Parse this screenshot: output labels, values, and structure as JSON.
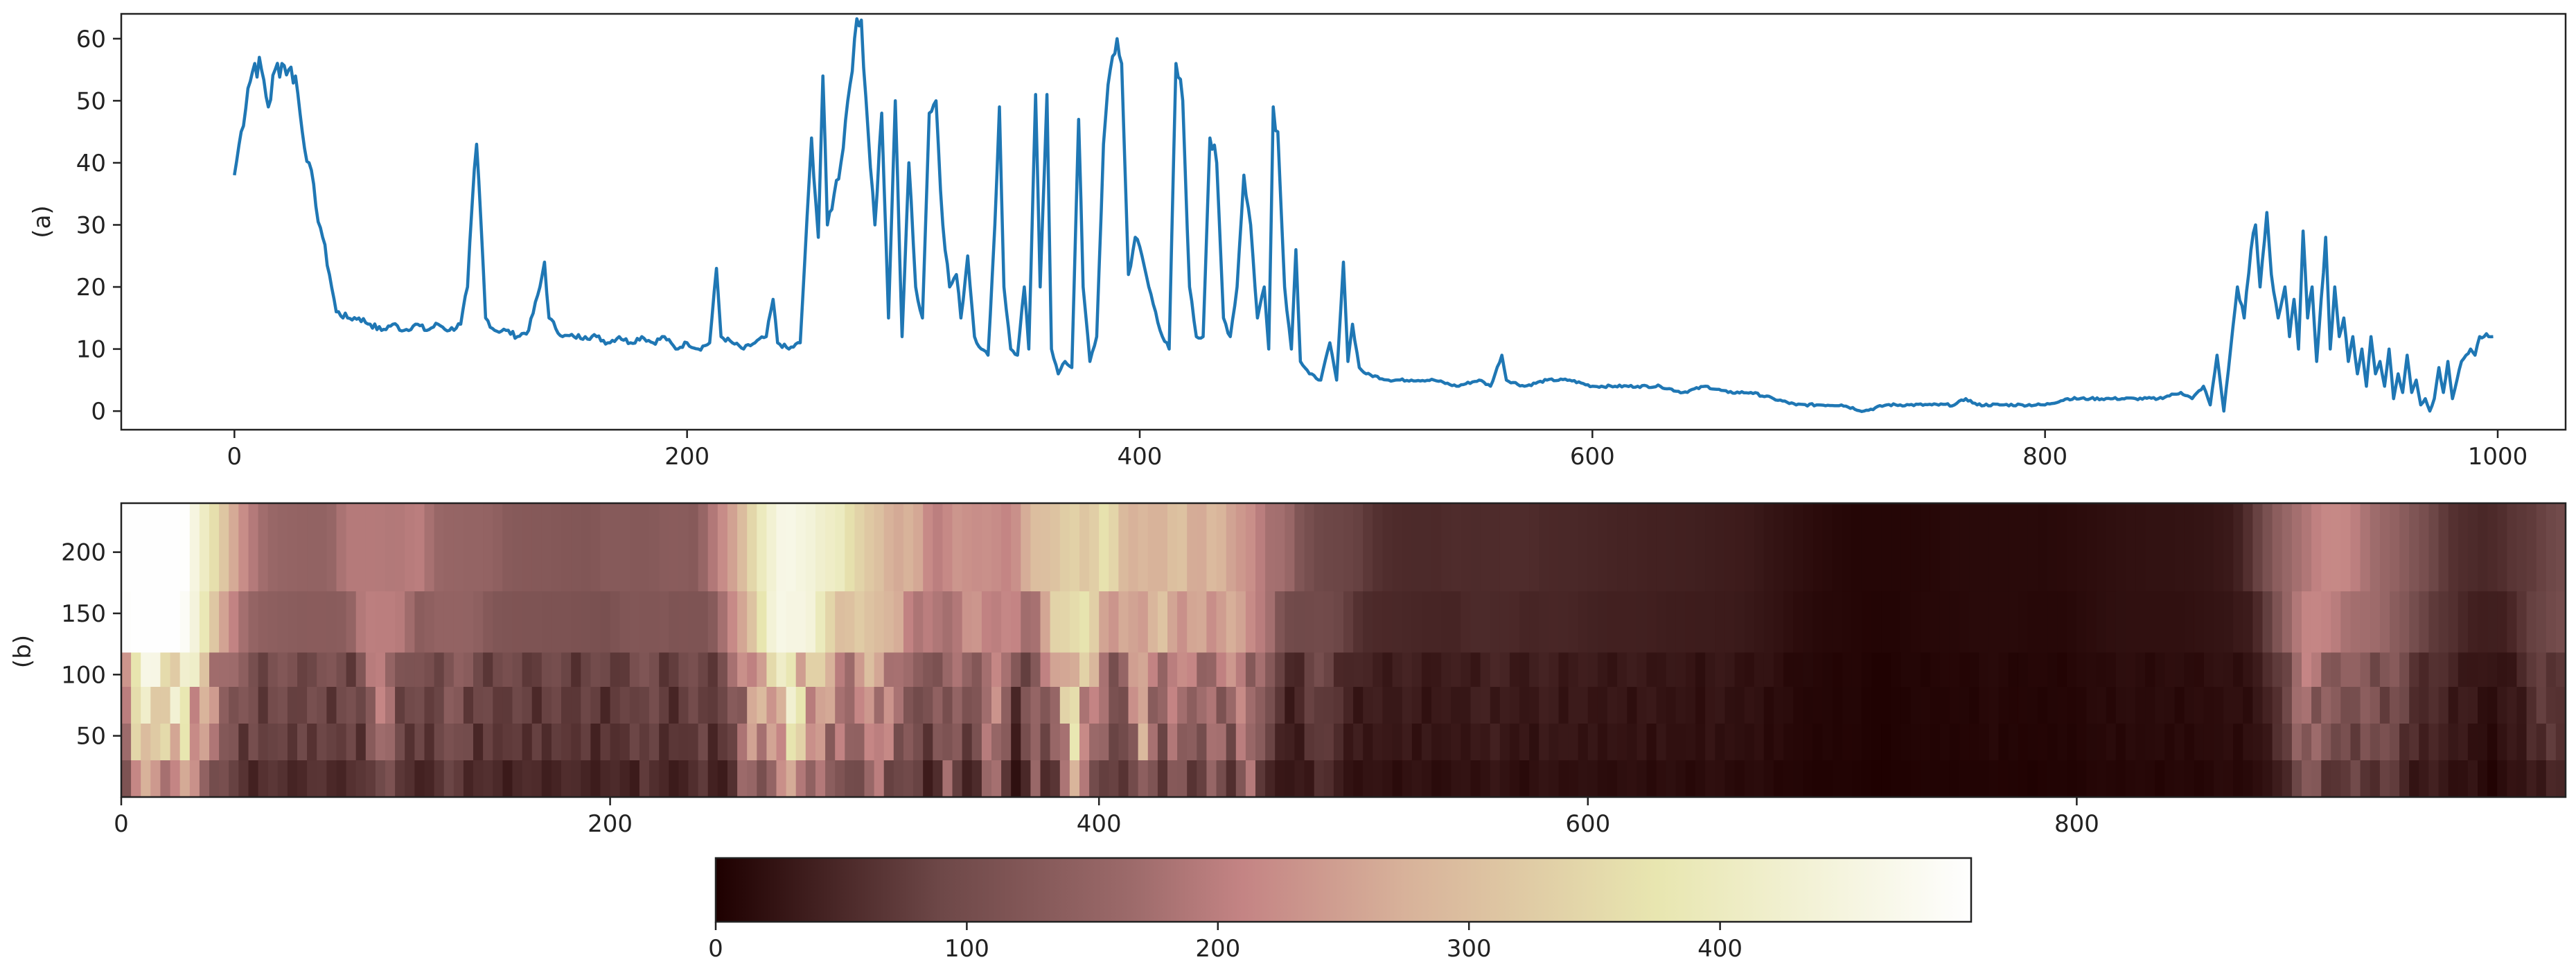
{
  "chart_data": [
    {
      "type": "line",
      "ylabel": "(a)",
      "xlim": [
        -50,
        1030
      ],
      "ylim": [
        -3,
        64
      ],
      "xticks": [
        0,
        200,
        400,
        600,
        800,
        1000
      ],
      "yticks": [
        0,
        10,
        20,
        30,
        40,
        50,
        60
      ],
      "series_color": "#1f77b4",
      "points": [
        [
          0,
          38
        ],
        [
          3,
          45
        ],
        [
          6,
          52
        ],
        [
          9,
          56
        ],
        [
          12,
          55
        ],
        [
          15,
          49
        ],
        [
          18,
          55
        ],
        [
          21,
          56
        ],
        [
          24,
          55
        ],
        [
          27,
          54
        ],
        [
          30,
          45
        ],
        [
          33,
          40
        ],
        [
          36,
          33
        ],
        [
          39,
          28
        ],
        [
          42,
          22
        ],
        [
          45,
          16
        ],
        [
          50,
          15
        ],
        [
          55,
          15
        ],
        [
          60,
          14
        ],
        [
          65,
          13
        ],
        [
          70,
          14
        ],
        [
          75,
          13
        ],
        [
          80,
          14
        ],
        [
          85,
          13
        ],
        [
          90,
          14
        ],
        [
          95,
          13
        ],
        [
          100,
          14
        ],
        [
          103,
          20
        ],
        [
          105,
          33
        ],
        [
          107,
          43
        ],
        [
          109,
          30
        ],
        [
          111,
          15
        ],
        [
          115,
          13
        ],
        [
          120,
          13
        ],
        [
          125,
          12
        ],
        [
          130,
          13
        ],
        [
          135,
          20
        ],
        [
          137,
          24
        ],
        [
          139,
          15
        ],
        [
          145,
          12
        ],
        [
          150,
          12
        ],
        [
          155,
          12
        ],
        [
          160,
          12
        ],
        [
          165,
          11
        ],
        [
          170,
          12
        ],
        [
          175,
          11
        ],
        [
          180,
          12
        ],
        [
          185,
          11
        ],
        [
          190,
          12
        ],
        [
          195,
          10
        ],
        [
          200,
          11
        ],
        [
          205,
          10
        ],
        [
          210,
          11
        ],
        [
          213,
          23
        ],
        [
          215,
          12
        ],
        [
          220,
          11
        ],
        [
          225,
          10
        ],
        [
          230,
          11
        ],
        [
          235,
          12
        ],
        [
          238,
          18
        ],
        [
          240,
          11
        ],
        [
          245,
          10
        ],
        [
          250,
          11
        ],
        [
          255,
          44
        ],
        [
          258,
          28
        ],
        [
          260,
          54
        ],
        [
          262,
          30
        ],
        [
          265,
          35
        ],
        [
          268,
          40
        ],
        [
          271,
          50
        ],
        [
          274,
          60
        ],
        [
          277,
          63
        ],
        [
          280,
          45
        ],
        [
          283,
          30
        ],
        [
          286,
          48
        ],
        [
          289,
          15
        ],
        [
          292,
          50
        ],
        [
          295,
          12
        ],
        [
          298,
          40
        ],
        [
          301,
          20
        ],
        [
          304,
          15
        ],
        [
          307,
          48
        ],
        [
          310,
          50
        ],
        [
          313,
          30
        ],
        [
          316,
          20
        ],
        [
          319,
          22
        ],
        [
          321,
          15
        ],
        [
          324,
          25
        ],
        [
          327,
          12
        ],
        [
          330,
          10
        ],
        [
          333,
          9
        ],
        [
          336,
          30
        ],
        [
          338,
          49
        ],
        [
          340,
          20
        ],
        [
          343,
          10
        ],
        [
          346,
          9
        ],
        [
          349,
          20
        ],
        [
          351,
          10
        ],
        [
          354,
          51
        ],
        [
          356,
          20
        ],
        [
          359,
          51
        ],
        [
          361,
          10
        ],
        [
          364,
          6
        ],
        [
          367,
          8
        ],
        [
          370,
          7
        ],
        [
          373,
          47
        ],
        [
          375,
          20
        ],
        [
          378,
          8
        ],
        [
          381,
          12
        ],
        [
          384,
          43
        ],
        [
          387,
          55
        ],
        [
          390,
          60
        ],
        [
          392,
          56
        ],
        [
          395,
          22
        ],
        [
          398,
          28
        ],
        [
          401,
          25
        ],
        [
          404,
          20
        ],
        [
          407,
          16
        ],
        [
          410,
          12
        ],
        [
          413,
          10
        ],
        [
          416,
          56
        ],
        [
          419,
          50
        ],
        [
          422,
          20
        ],
        [
          425,
          12
        ],
        [
          428,
          12
        ],
        [
          431,
          44
        ],
        [
          434,
          40
        ],
        [
          437,
          15
        ],
        [
          440,
          12
        ],
        [
          443,
          20
        ],
        [
          446,
          38
        ],
        [
          449,
          30
        ],
        [
          452,
          15
        ],
        [
          455,
          20
        ],
        [
          457,
          10
        ],
        [
          459,
          49
        ],
        [
          461,
          45
        ],
        [
          464,
          20
        ],
        [
          467,
          10
        ],
        [
          469,
          26
        ],
        [
          471,
          8
        ],
        [
          475,
          6
        ],
        [
          480,
          5
        ],
        [
          484,
          11
        ],
        [
          487,
          5
        ],
        [
          490,
          24
        ],
        [
          492,
          8
        ],
        [
          494,
          14
        ],
        [
          497,
          7
        ],
        [
          500,
          6
        ],
        [
          510,
          5
        ],
        [
          520,
          5
        ],
        [
          530,
          5
        ],
        [
          540,
          4
        ],
        [
          550,
          5
        ],
        [
          555,
          4
        ],
        [
          560,
          9
        ],
        [
          562,
          5
        ],
        [
          570,
          4
        ],
        [
          580,
          5
        ],
        [
          590,
          5
        ],
        [
          600,
          4
        ],
        [
          610,
          4
        ],
        [
          620,
          4
        ],
        [
          630,
          4
        ],
        [
          640,
          3
        ],
        [
          650,
          4
        ],
        [
          660,
          3
        ],
        [
          670,
          3
        ],
        [
          680,
          2
        ],
        [
          690,
          1
        ],
        [
          700,
          1
        ],
        [
          710,
          1
        ],
        [
          720,
          0
        ],
        [
          730,
          1
        ],
        [
          740,
          1
        ],
        [
          750,
          1
        ],
        [
          760,
          1
        ],
        [
          765,
          2
        ],
        [
          770,
          1
        ],
        [
          780,
          1
        ],
        [
          790,
          1
        ],
        [
          800,
          1
        ],
        [
          810,
          2
        ],
        [
          820,
          2
        ],
        [
          830,
          2
        ],
        [
          840,
          2
        ],
        [
          850,
          2
        ],
        [
          860,
          3
        ],
        [
          865,
          2
        ],
        [
          870,
          4
        ],
        [
          873,
          1
        ],
        [
          876,
          9
        ],
        [
          879,
          0
        ],
        [
          882,
          10
        ],
        [
          885,
          20
        ],
        [
          888,
          15
        ],
        [
          891,
          26
        ],
        [
          893,
          30
        ],
        [
          895,
          20
        ],
        [
          898,
          32
        ],
        [
          900,
          22
        ],
        [
          903,
          15
        ],
        [
          906,
          20
        ],
        [
          908,
          12
        ],
        [
          910,
          18
        ],
        [
          912,
          10
        ],
        [
          914,
          29
        ],
        [
          916,
          15
        ],
        [
          918,
          20
        ],
        [
          920,
          8
        ],
        [
          922,
          18
        ],
        [
          924,
          28
        ],
        [
          926,
          10
        ],
        [
          928,
          20
        ],
        [
          930,
          12
        ],
        [
          932,
          15
        ],
        [
          934,
          8
        ],
        [
          936,
          12
        ],
        [
          938,
          6
        ],
        [
          940,
          10
        ],
        [
          942,
          4
        ],
        [
          944,
          12
        ],
        [
          946,
          6
        ],
        [
          948,
          8
        ],
        [
          950,
          4
        ],
        [
          952,
          10
        ],
        [
          954,
          2
        ],
        [
          956,
          6
        ],
        [
          958,
          3
        ],
        [
          960,
          9
        ],
        [
          962,
          3
        ],
        [
          964,
          5
        ],
        [
          966,
          1
        ],
        [
          968,
          2
        ],
        [
          970,
          0
        ],
        [
          972,
          2
        ],
        [
          974,
          7
        ],
        [
          976,
          3
        ],
        [
          978,
          8
        ],
        [
          980,
          2
        ],
        [
          982,
          5
        ],
        [
          984,
          8
        ],
        [
          986,
          9
        ],
        [
          988,
          10
        ],
        [
          990,
          9
        ],
        [
          992,
          12
        ],
        [
          994,
          12
        ],
        [
          996,
          12
        ],
        [
          998,
          12
        ]
      ]
    },
    {
      "type": "heatmap",
      "ylabel": "(b)",
      "xlim": [
        0,
        1000
      ],
      "ylim": [
        0,
        240
      ],
      "xticks": [
        0,
        200,
        400,
        600,
        800
      ],
      "yticks": [
        50,
        100,
        150,
        200
      ],
      "colormap": "pink",
      "colorbar_ticks": [
        0,
        100,
        200,
        300,
        400
      ],
      "colorbar_range": [
        0,
        500
      ]
    }
  ]
}
